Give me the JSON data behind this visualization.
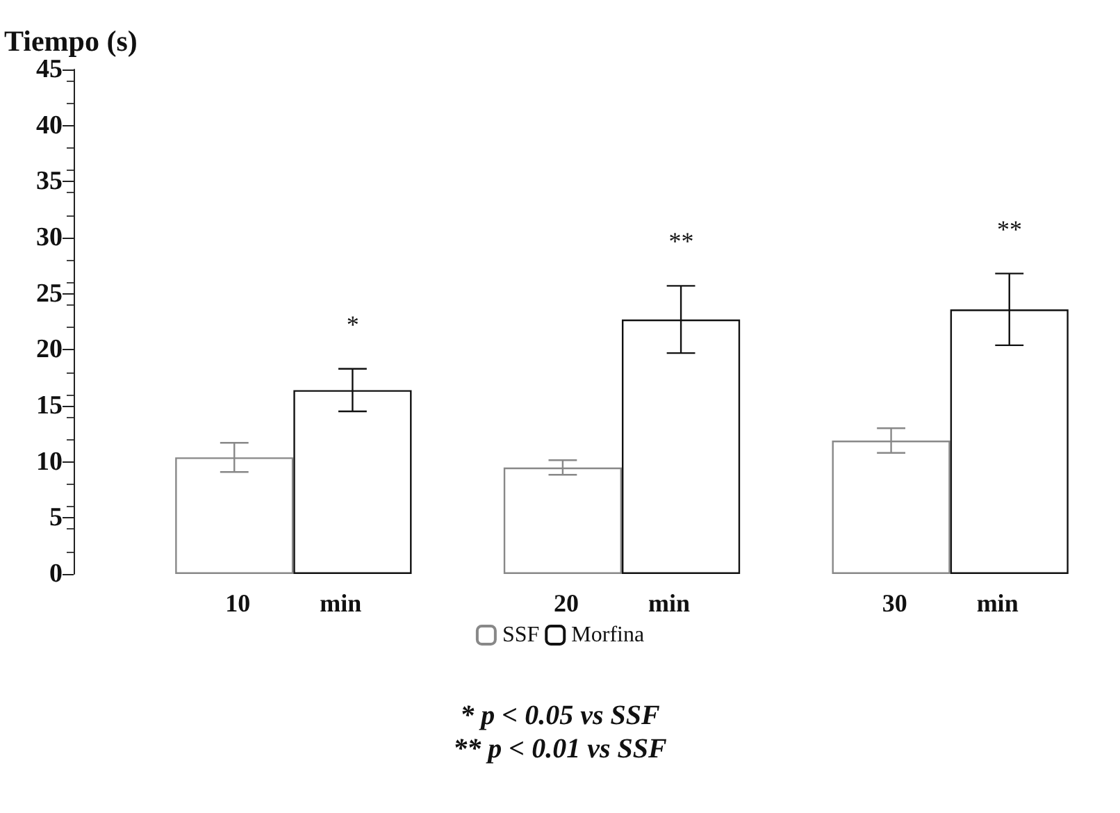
{
  "chart_data": {
    "type": "bar",
    "ylabel": "Tiempo (s)",
    "categories": [
      "10 min",
      "20 min",
      "30 min"
    ],
    "series": [
      {
        "name": "SSF",
        "color": "#ffffff",
        "values": [
          10.4,
          9.5,
          11.9
        ],
        "errors": [
          1.3,
          0.65,
          1.1
        ]
      },
      {
        "name": "Morfina",
        "color": "#ffffff",
        "values": [
          16.4,
          22.7,
          23.6
        ],
        "errors": [
          1.9,
          3.0,
          3.2
        ]
      }
    ],
    "ylim": [
      0,
      45
    ],
    "yticks": [
      0,
      5,
      10,
      15,
      20,
      25,
      30,
      35,
      40,
      45
    ],
    "grid": false,
    "legend": "bottom",
    "annotations": [
      "*",
      "**",
      "**",
      "* p < 0.05 vs SSF",
      "** p < 0.01 vs SSF"
    ]
  }
}
